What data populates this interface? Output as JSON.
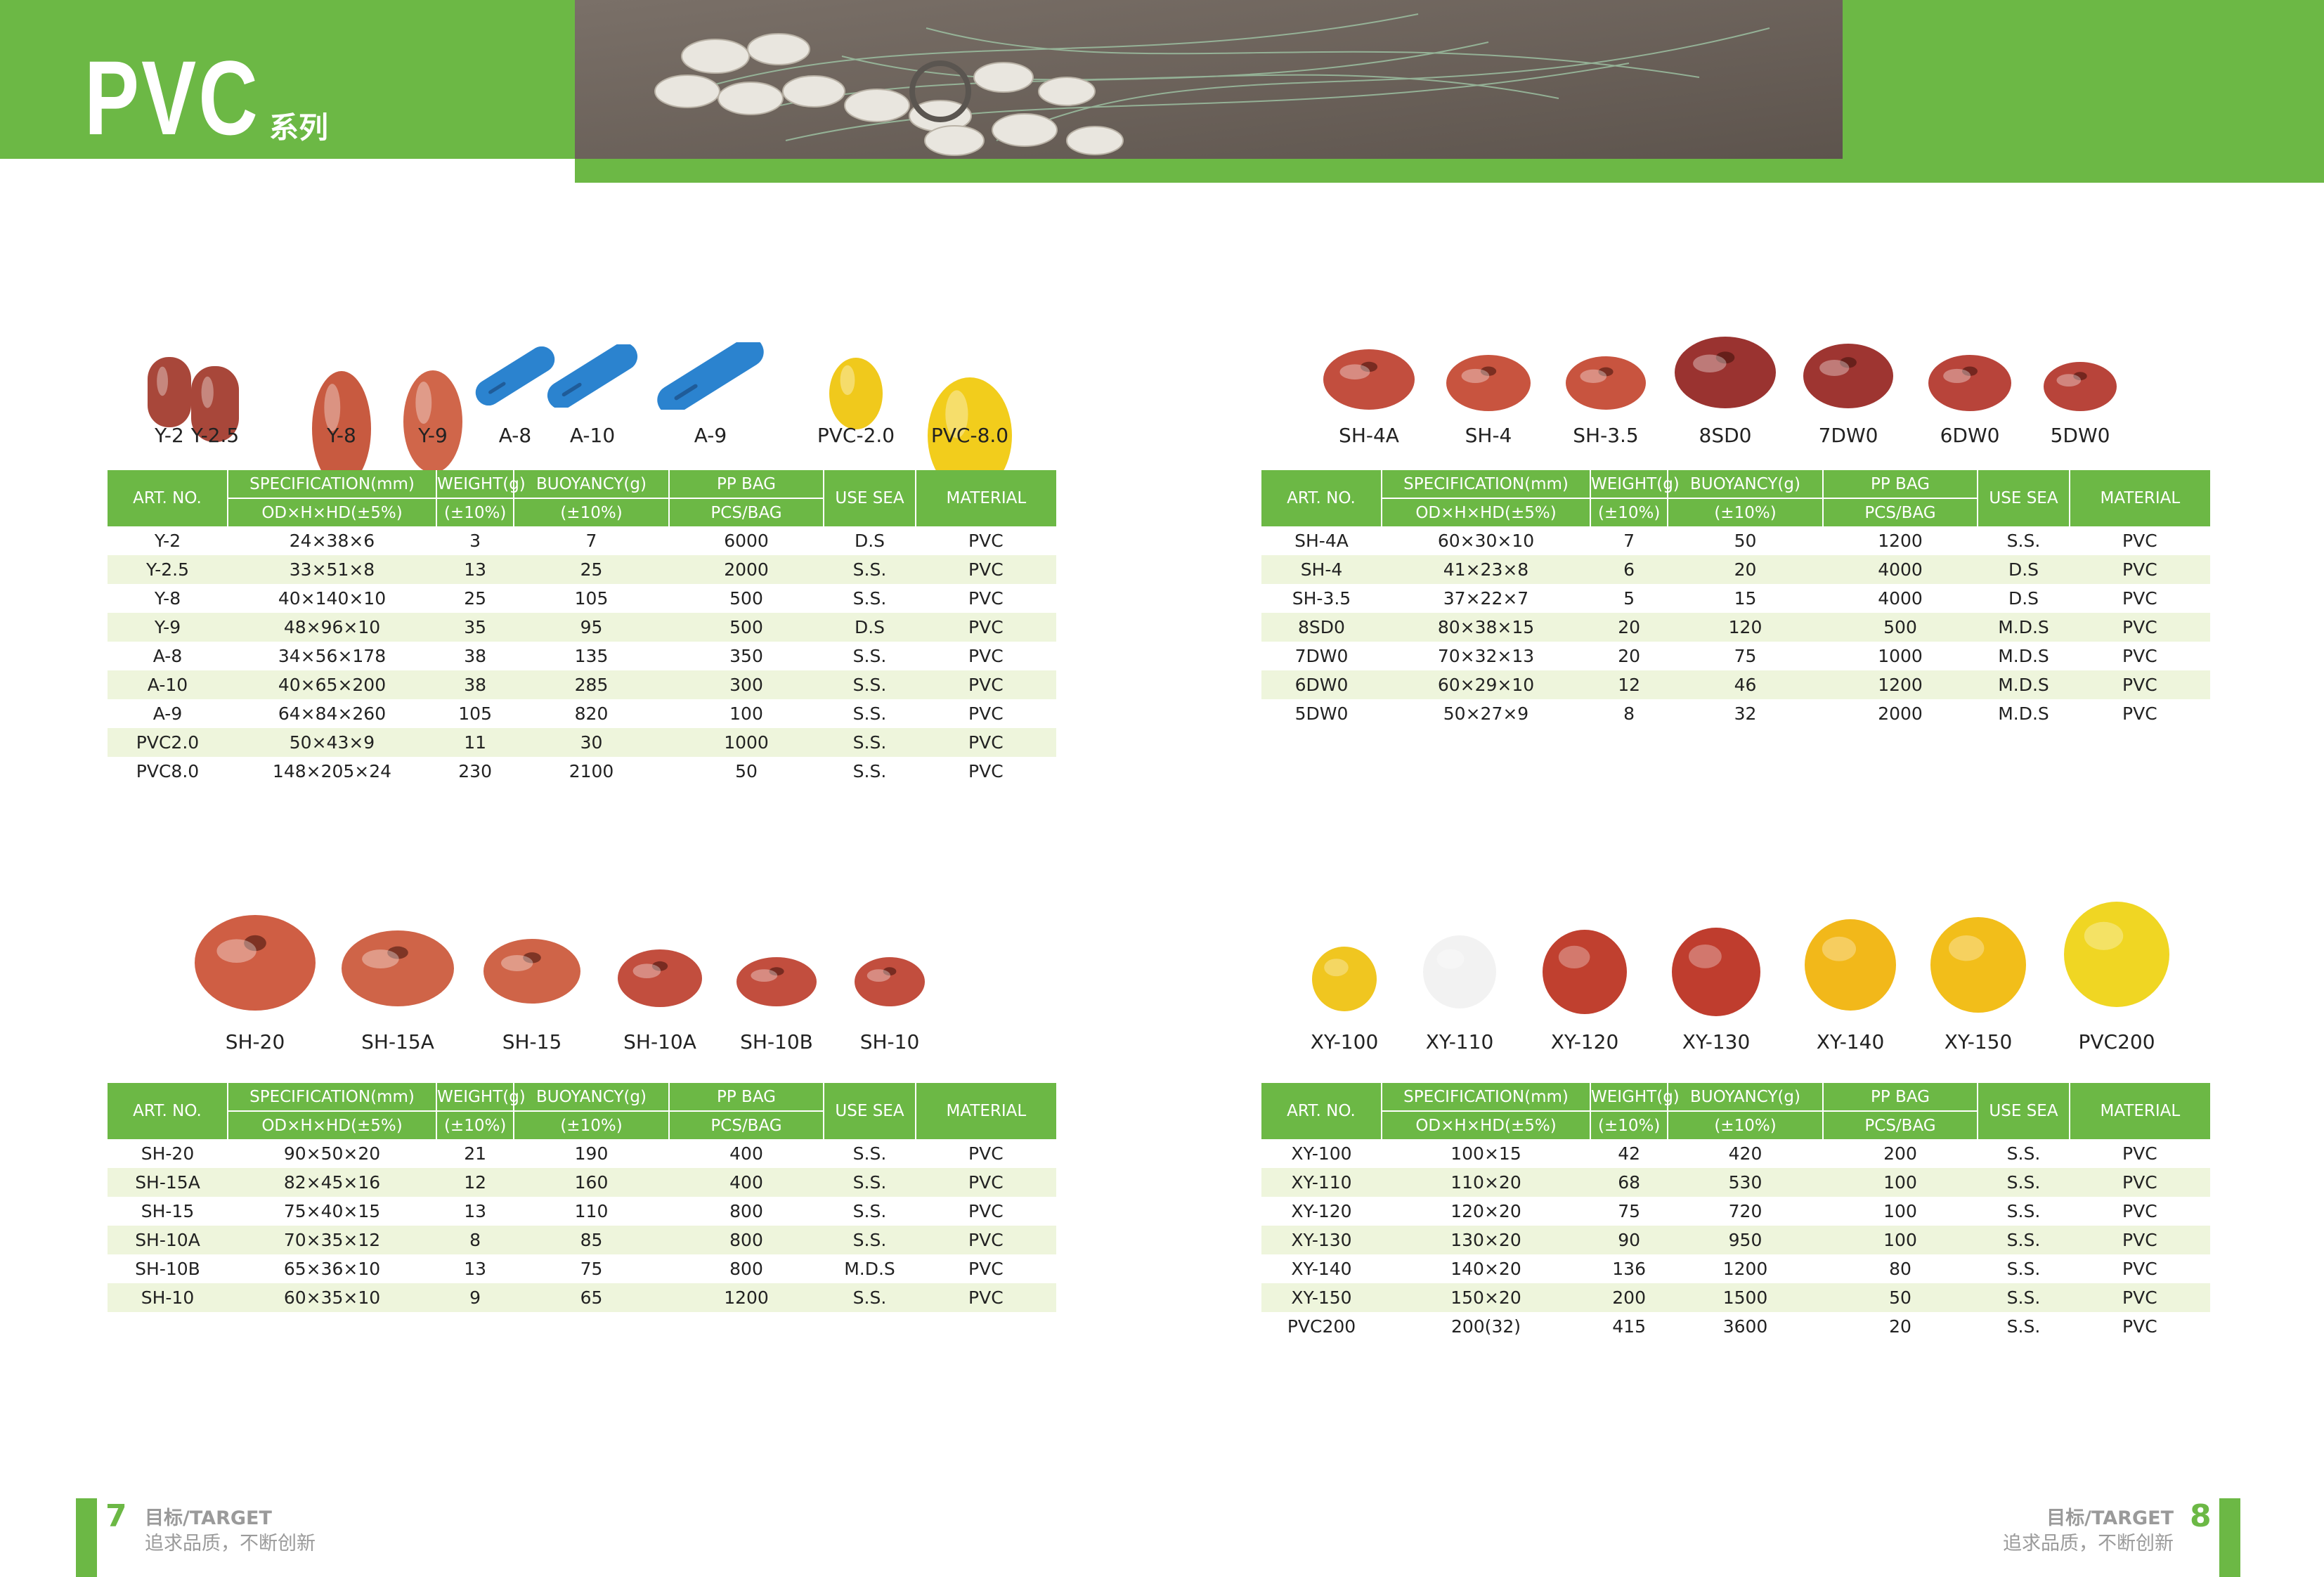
{
  "header": {
    "title": "PVC",
    "subtitle": "系列"
  },
  "colors": {
    "accent": "#6cb845",
    "row_alt": "#eef5dc",
    "red_float": "#c8513f",
    "blue_float": "#2b83cf",
    "yellow_float": "#f2c11c"
  },
  "table_headers": {
    "art_no": "ART. NO.",
    "spec": "SPECIFICATION(mm)",
    "spec_sub": "OD×H×HD(±5%)",
    "weight": "WEIGHT(g)",
    "weight_sub": "(±10%)",
    "buoyancy": "BUOYANCY(g)",
    "buoyancy_sub": "(±10%)",
    "ppbag": "PP BAG",
    "ppbag_sub": "PCS/BAG",
    "use_sea": "USE SEA",
    "material": "MATERIAL"
  },
  "sections": [
    {
      "products": [
        {
          "label": "Y-2",
          "shape": "barrel",
          "color": "#a8473a"
        },
        {
          "label": "Y-2.5",
          "shape": "barrel",
          "color": "#a8473a"
        },
        {
          "label": "Y-8",
          "shape": "egg",
          "color": "#c85a40"
        },
        {
          "label": "Y-9",
          "shape": "egg",
          "color": "#d0664a"
        },
        {
          "label": "A-8",
          "shape": "stick",
          "color": "#2b83cf"
        },
        {
          "label": "A-10",
          "shape": "stick",
          "color": "#2b83cf"
        },
        {
          "label": "A-9",
          "shape": "stick",
          "color": "#2b83cf"
        },
        {
          "label": "PVC-2.0",
          "shape": "egg",
          "color": "#f0c91c"
        },
        {
          "label": "PVC-8.0",
          "shape": "egg",
          "color": "#f2cd1c"
        }
      ],
      "rows": [
        [
          "Y-2",
          "24×38×6",
          "3",
          "7",
          "6000",
          "D.S",
          "PVC"
        ],
        [
          "Y-2.5",
          "33×51×8",
          "13",
          "25",
          "2000",
          "S.S.",
          "PVC"
        ],
        [
          "Y-8",
          "40×140×10",
          "25",
          "105",
          "500",
          "S.S.",
          "PVC"
        ],
        [
          "Y-9",
          "48×96×10",
          "35",
          "95",
          "500",
          "D.S",
          "PVC"
        ],
        [
          "A-8",
          "34×56×178",
          "38",
          "135",
          "350",
          "S.S.",
          "PVC"
        ],
        [
          "A-10",
          "40×65×200",
          "38",
          "285",
          "300",
          "S.S.",
          "PVC"
        ],
        [
          "A-9",
          "64×84×260",
          "105",
          "820",
          "100",
          "S.S.",
          "PVC"
        ],
        [
          "PVC2.0",
          "50×43×9",
          "11",
          "30",
          "1000",
          "S.S.",
          "PVC"
        ],
        [
          "PVC8.0",
          "148×205×24",
          "230",
          "2100",
          "50",
          "S.S.",
          "PVC"
        ]
      ]
    },
    {
      "products": [
        {
          "label": "SH-4A",
          "shape": "disc",
          "color": "#c24e3e"
        },
        {
          "label": "SH-4",
          "shape": "disc",
          "color": "#c8543f"
        },
        {
          "label": "SH-3.5",
          "shape": "disc",
          "color": "#c8543f"
        },
        {
          "label": "8SD0",
          "shape": "disc",
          "color": "#9a3330"
        },
        {
          "label": "7DW0",
          "shape": "disc",
          "color": "#9e3531"
        },
        {
          "label": "6DW0",
          "shape": "disc",
          "color": "#b8443a"
        },
        {
          "label": "5DW0",
          "shape": "disc",
          "color": "#b8443a"
        }
      ],
      "rows": [
        [
          "SH-4A",
          "60×30×10",
          "7",
          "50",
          "1200",
          "S.S.",
          "PVC"
        ],
        [
          "SH-4",
          "41×23×8",
          "6",
          "20",
          "4000",
          "D.S",
          "PVC"
        ],
        [
          "SH-3.5",
          "37×22×7",
          "5",
          "15",
          "4000",
          "D.S",
          "PVC"
        ],
        [
          "8SD0",
          "80×38×15",
          "20",
          "120",
          "500",
          "M.D.S",
          "PVC"
        ],
        [
          "7DW0",
          "70×32×13",
          "20",
          "75",
          "1000",
          "M.D.S",
          "PVC"
        ],
        [
          "6DW0",
          "60×29×10",
          "12",
          "46",
          "1200",
          "M.D.S",
          "PVC"
        ],
        [
          "5DW0",
          "50×27×9",
          "8",
          "32",
          "2000",
          "M.D.S",
          "PVC"
        ]
      ]
    },
    {
      "products": [
        {
          "label": "SH-20",
          "shape": "disc",
          "color": "#cf5e44"
        },
        {
          "label": "SH-15A",
          "shape": "disc",
          "color": "#cf6448"
        },
        {
          "label": "SH-15",
          "shape": "disc",
          "color": "#cf6448"
        },
        {
          "label": "SH-10A",
          "shape": "disc",
          "color": "#c24e3e"
        },
        {
          "label": "SH-10B",
          "shape": "disc",
          "color": "#c24e3e"
        },
        {
          "label": "SH-10",
          "shape": "disc",
          "color": "#c24e3e"
        }
      ],
      "rows": [
        [
          "SH-20",
          "90×50×20",
          "21",
          "190",
          "400",
          "S.S.",
          "PVC"
        ],
        [
          "SH-15A",
          "82×45×16",
          "12",
          "160",
          "400",
          "S.S.",
          "PVC"
        ],
        [
          "SH-15",
          "75×40×15",
          "13",
          "110",
          "800",
          "S.S.",
          "PVC"
        ],
        [
          "SH-10A",
          "70×35×12",
          "8",
          "85",
          "800",
          "S.S.",
          "PVC"
        ],
        [
          "SH-10B",
          "65×36×10",
          "13",
          "75",
          "800",
          "M.D.S",
          "PVC"
        ],
        [
          "SH-10",
          "60×35×10",
          "9",
          "65",
          "1200",
          "S.S.",
          "PVC"
        ]
      ]
    },
    {
      "products": [
        {
          "label": "XY-100",
          "shape": "ball",
          "color": "#f0c620"
        },
        {
          "label": "XY-110",
          "shape": "ball",
          "color": "#f2f2f2"
        },
        {
          "label": "XY-120",
          "shape": "ball",
          "color": "#c0402f"
        },
        {
          "label": "XY-130",
          "shape": "ball",
          "color": "#bf3d2e"
        },
        {
          "label": "XY-140",
          "shape": "ball",
          "color": "#f2b81a"
        },
        {
          "label": "XY-150",
          "shape": "ball",
          "color": "#f2be1a"
        },
        {
          "label": "PVC200",
          "shape": "ball",
          "color": "#f0d623"
        }
      ],
      "rows": [
        [
          "XY-100",
          "100×15",
          "42",
          "420",
          "200",
          "S.S.",
          "PVC"
        ],
        [
          "XY-110",
          "110×20",
          "68",
          "530",
          "100",
          "S.S.",
          "PVC"
        ],
        [
          "XY-120",
          "120×20",
          "75",
          "720",
          "100",
          "S.S.",
          "PVC"
        ],
        [
          "XY-130",
          "130×20",
          "90",
          "950",
          "100",
          "S.S.",
          "PVC"
        ],
        [
          "XY-140",
          "140×20",
          "136",
          "1200",
          "80",
          "S.S.",
          "PVC"
        ],
        [
          "XY-150",
          "150×20",
          "200",
          "1500",
          "50",
          "S.S.",
          "PVC"
        ],
        [
          "PVC200",
          "200(32)",
          "415",
          "3600",
          "20",
          "S.S.",
          "PVC"
        ]
      ]
    }
  ],
  "footer": {
    "left_page": "7",
    "right_page": "8",
    "target": "目标/TARGET",
    "slogan": "追求品质，不断创新"
  }
}
